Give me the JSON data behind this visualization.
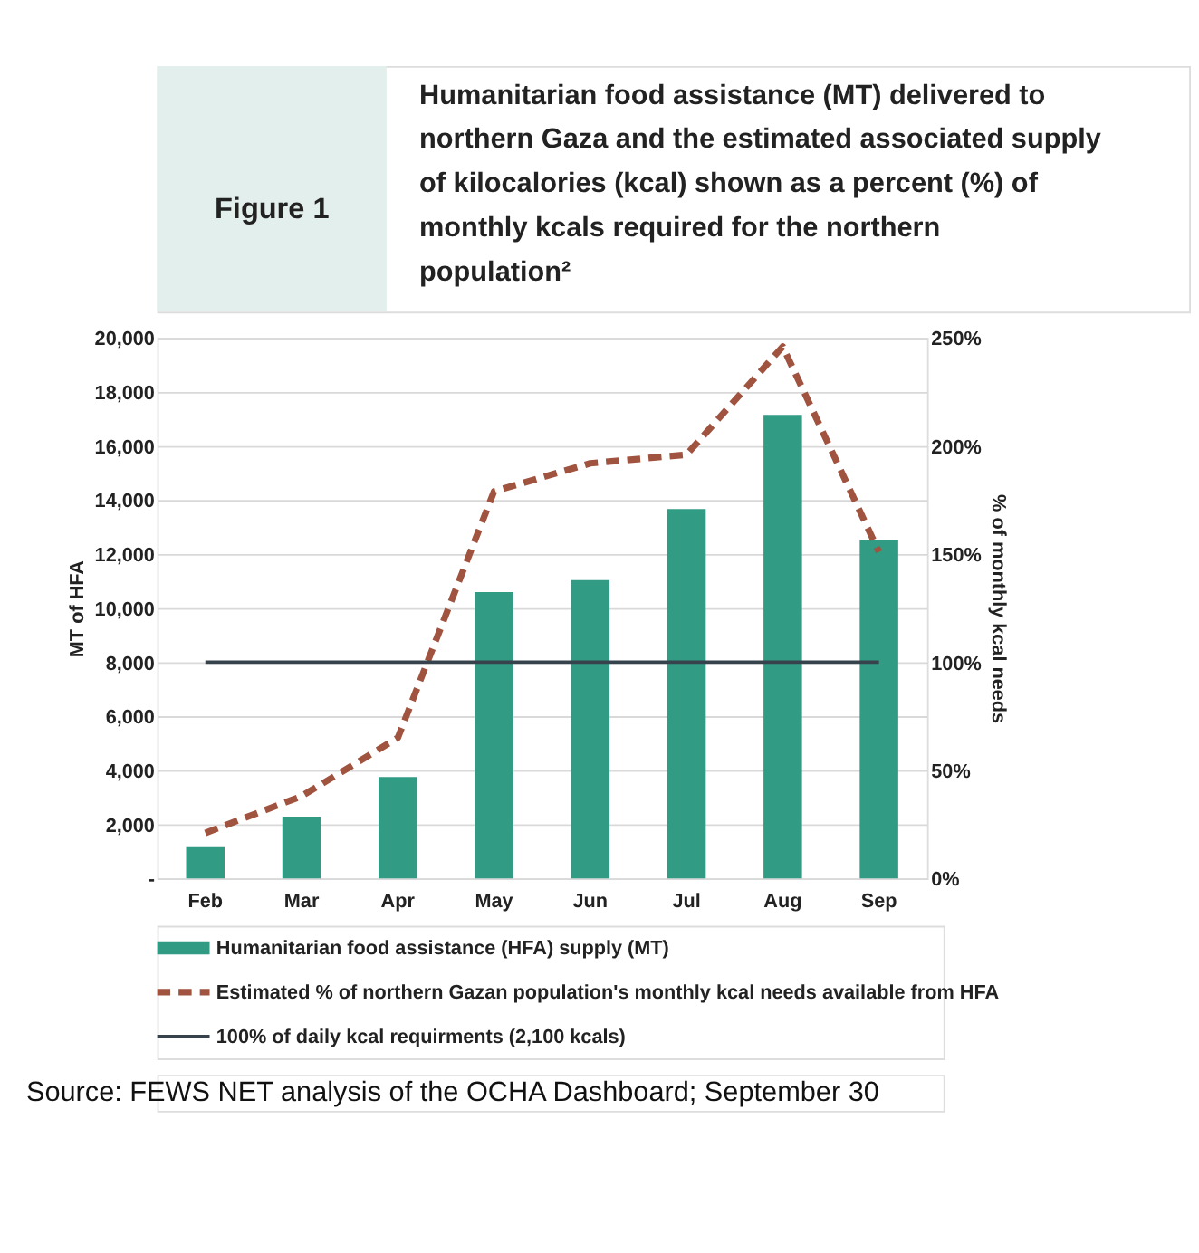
{
  "chart_data": {
    "type": "bar",
    "title": "Figure 1",
    "subtitle": "Humanitarian food assistance (MT) delivered to northern Gaza and the estimated associated supply of kilocalories (kcal) shown as a percent (%) of monthly kcals required for the northern population²",
    "categories": [
      "Feb",
      "Mar",
      "Apr",
      "May",
      "Jun",
      "Jul",
      "Aug",
      "Sep"
    ],
    "series": [
      {
        "name": "Humanitarian food assistance (HFA) supply (MT)",
        "color": "#329b84",
        "values": [
          1150,
          2280,
          3750,
          10590,
          11040,
          13670,
          17150,
          12520
        ]
      },
      {
        "name": "Estimated % of northern Gazan population's monthly kcal needs available from HFA",
        "type": "line",
        "axis": "y2",
        "line_style": "dashed",
        "color": "#a0533f",
        "values": [
          21,
          38,
          65,
          179,
          192,
          196,
          246,
          151
        ]
      },
      {
        "name": "100% of daily kcal requirments (2,100 kcals)",
        "type": "line",
        "axis": "y2",
        "line_style": "solid",
        "color": "#36434d",
        "values": [
          100,
          100,
          100,
          100,
          100,
          100,
          100,
          100
        ]
      }
    ],
    "ylabel": "MT of HFA",
    "y2label": "% of monthly kcal needs",
    "ylim": [
      0,
      20000
    ],
    "yticks": [
      {
        "value": 0,
        "label": "-"
      },
      {
        "value": 2000,
        "label": "2,000"
      },
      {
        "value": 4000,
        "label": "4,000"
      },
      {
        "value": 6000,
        "label": "6,000"
      },
      {
        "value": 8000,
        "label": "8,000"
      },
      {
        "value": 10000,
        "label": "10,000"
      },
      {
        "value": 12000,
        "label": "12,000"
      },
      {
        "value": 14000,
        "label": "14,000"
      },
      {
        "value": 16000,
        "label": "16,000"
      },
      {
        "value": 18000,
        "label": "18,000"
      },
      {
        "value": 20000,
        "label": "20,000"
      }
    ],
    "y2lim": [
      0,
      250
    ],
    "y2ticks": [
      {
        "value": 0,
        "label": "0%"
      },
      {
        "value": 50,
        "label": "50%"
      },
      {
        "value": 100,
        "label": "100%"
      },
      {
        "value": 150,
        "label": "150%"
      },
      {
        "value": 200,
        "label": "200%"
      },
      {
        "value": 250,
        "label": "250%"
      }
    ],
    "grid": "y",
    "legend": "bottom",
    "marker": "none",
    "annotations": [
      "Source: FEWS NET analysis of the OCHA Dashboard; September 30"
    ]
  }
}
